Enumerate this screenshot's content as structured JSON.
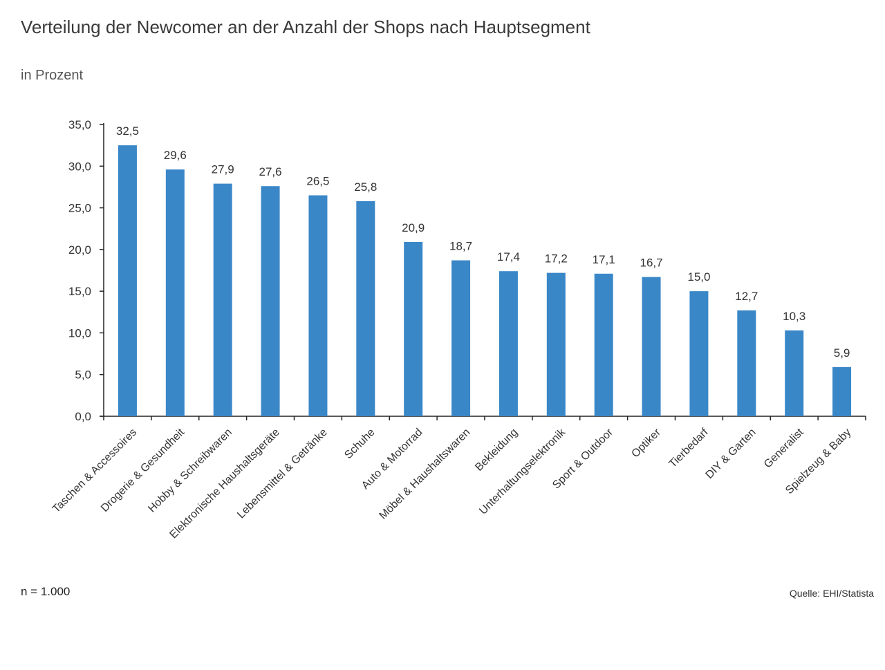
{
  "header": {
    "title": "Verteilung der Newcomer an der Anzahl der Shops nach Hauptsegment",
    "subtitle": "in Prozent"
  },
  "footer": {
    "sample": "n = 1.000",
    "source": "Quelle: EHI/Statista"
  },
  "colors": {
    "bar": "#3a87c8",
    "axis": "#222222",
    "text": "#333333"
  },
  "chart_data": {
    "type": "bar",
    "title": "Verteilung der Newcomer an der Anzahl der Shops nach Hauptsegment",
    "subtitle": "in Prozent",
    "xlabel": "",
    "ylabel": "",
    "ylim": [
      0,
      35
    ],
    "yticks": [
      "0,0",
      "5,0",
      "10,0",
      "15,0",
      "20,0",
      "25,0",
      "30,0",
      "35,0"
    ],
    "grid": false,
    "categories": [
      "Taschen & Accessoires",
      "Drogerie & Gesundheit",
      "Hobby & Schreibwaren",
      "Elektronische Haushaltsgeräte",
      "Lebensmittel & Getränke",
      "Schuhe",
      "Auto & Motorrad",
      "Möbel & Haushaltswaren",
      "Bekleidung",
      "Unterhaltungselektronik",
      "Sport & Outdoor",
      "Optiker",
      "Tierbedarf",
      "DIY & Garten",
      "Generalist",
      "Spielzeug & Baby"
    ],
    "values": [
      32.5,
      29.6,
      27.9,
      27.6,
      26.5,
      25.8,
      20.9,
      18.7,
      17.4,
      17.2,
      17.1,
      16.7,
      15.0,
      12.7,
      10.3,
      5.9
    ],
    "value_labels": [
      "32,5",
      "29,6",
      "27,9",
      "27,6",
      "26,5",
      "25,8",
      "20,9",
      "18,7",
      "17,4",
      "17,2",
      "17,1",
      "16,7",
      "15,0",
      "12,7",
      "10,3",
      "5,9"
    ]
  }
}
